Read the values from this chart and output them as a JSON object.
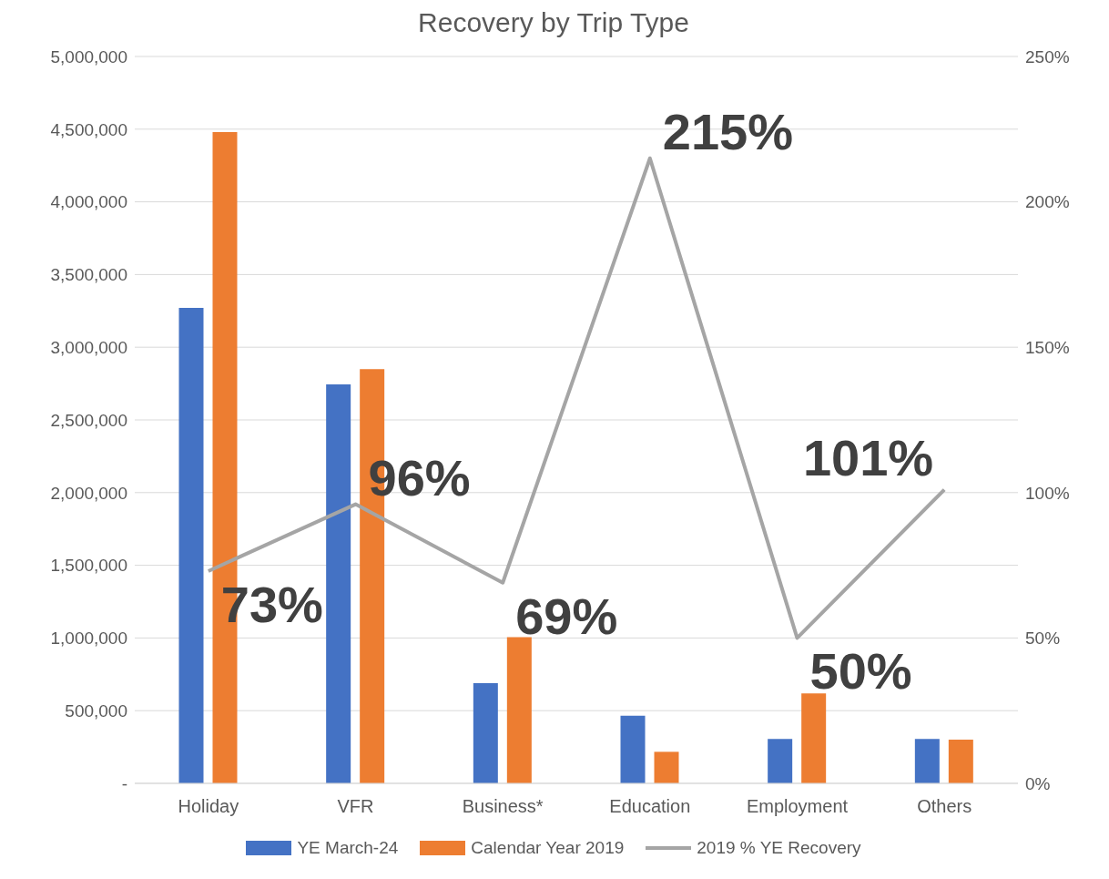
{
  "chart_data": {
    "type": "bar",
    "title": "Recovery by Trip Type",
    "categories": [
      "Holiday",
      "VFR",
      "Business*",
      "Education",
      "Employment",
      "Others"
    ],
    "series": [
      {
        "name": "YE March-24",
        "color": "#4472c4",
        "values": [
          3270000,
          2745000,
          690000,
          465000,
          306000,
          306000
        ]
      },
      {
        "name": "Calendar Year 2019",
        "color": "#ed7d31",
        "values": [
          4480000,
          2850000,
          1005000,
          217000,
          618000,
          300000
        ]
      },
      {
        "name": "2019 % YE Recovery",
        "type": "line",
        "axis": "y2",
        "color": "#a5a5a5",
        "values": [
          73,
          96,
          69,
          215,
          50,
          101
        ],
        "value_labels": [
          "73%",
          "96%",
          "69%",
          "215%",
          "50%",
          "101%"
        ]
      }
    ],
    "ylim": [
      0,
      5000000
    ],
    "yticks": [
      {
        "value": 0,
        "label": "-"
      },
      {
        "value": 500000,
        "label": "500,000"
      },
      {
        "value": 1000000,
        "label": "1,000,000"
      },
      {
        "value": 1500000,
        "label": "1,500,000"
      },
      {
        "value": 2000000,
        "label": "2,000,000"
      },
      {
        "value": 2500000,
        "label": "2,500,000"
      },
      {
        "value": 3000000,
        "label": "3,000,000"
      },
      {
        "value": 3500000,
        "label": "3,500,000"
      },
      {
        "value": 4000000,
        "label": "4,000,000"
      },
      {
        "value": 4500000,
        "label": "4,500,000"
      },
      {
        "value": 5000000,
        "label": "5,000,000"
      }
    ],
    "y2lim": [
      0,
      250
    ],
    "y2ticks": [
      {
        "value": 0,
        "label": "0%"
      },
      {
        "value": 50,
        "label": "50%"
      },
      {
        "value": 100,
        "label": "100%"
      },
      {
        "value": 150,
        "label": "150%"
      },
      {
        "value": 200,
        "label": "200%"
      },
      {
        "value": 250,
        "label": "250%"
      }
    ],
    "grid": "y",
    "legend": "bottom",
    "marker": "none"
  }
}
